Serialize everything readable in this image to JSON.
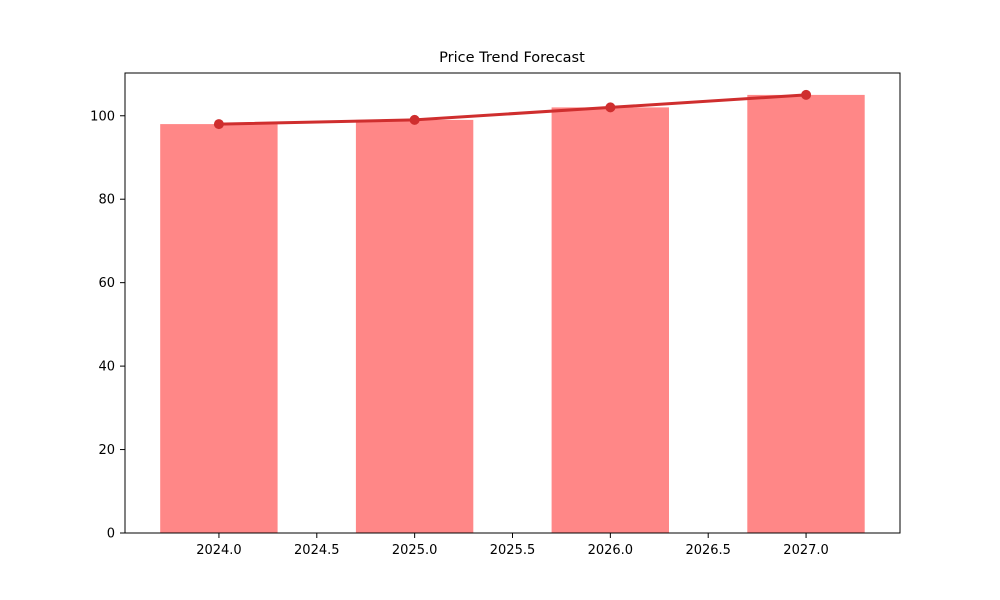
{
  "chart_data": {
    "type": "bar",
    "title": "Price Trend Forecast",
    "xlabel": "",
    "ylabel": "",
    "x": [
      2024,
      2025,
      2026,
      2027
    ],
    "series": [
      {
        "name": "price-bars",
        "type": "bar",
        "values": [
          98,
          99,
          102,
          105
        ],
        "color": "#ff8787",
        "bar_width": 0.6
      },
      {
        "name": "trend-line",
        "type": "line",
        "values": [
          98,
          99,
          102,
          105
        ],
        "color": "#cf2e2e",
        "marker": "circle",
        "marker_radius": 5,
        "line_width": 3
      }
    ],
    "x_tick_labels": [
      "2024.0",
      "2024.5",
      "2025.0",
      "2025.5",
      "2026.0",
      "2026.5",
      "2027.0"
    ],
    "x_tick_values": [
      2024,
      2024.5,
      2025,
      2025.5,
      2026,
      2026.5,
      2027
    ],
    "y_tick_labels": [
      "0",
      "20",
      "40",
      "60",
      "80",
      "100"
    ],
    "y_tick_values": [
      0,
      20,
      40,
      60,
      80,
      100
    ],
    "xlim": [
      2023.52,
      2027.48
    ],
    "ylim": [
      0,
      110.25
    ],
    "grid": false,
    "legend": "none",
    "frame_color": "#000000",
    "background": "#ffffff"
  }
}
